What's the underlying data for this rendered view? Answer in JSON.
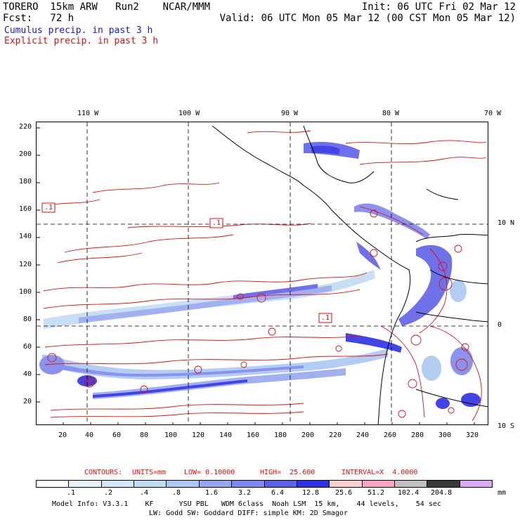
{
  "header": {
    "line1_left": "TORERO  15km ARW   Run2    NCAR/MMM",
    "line1_right": "Init: 06 UTC Fri 02 Mar 12",
    "line2_left": "Fcst:   72 h",
    "line2_right": "Valid: 06 UTC Mon 05 Mar 12 (00 CST Mon 05 Mar 12)",
    "cumulus_label": "Cumulus precip. in past 3 h",
    "explicit_label": "Explicit precip. in past 3 h"
  },
  "axes": {
    "top_longitudes": [
      "110 W",
      "100 W",
      "90 W",
      "80 W",
      "70 W"
    ],
    "right_latitudes": [
      "10 N",
      "0",
      "10 S"
    ],
    "left_ticks": [
      "220",
      "200",
      "180",
      "160",
      "140",
      "120",
      "100",
      "80",
      "60",
      "40",
      "20"
    ],
    "bottom_ticks": [
      "20",
      "40",
      "60",
      "80",
      "100",
      "120",
      "140",
      "160",
      "180",
      "200",
      "220",
      "240",
      "260",
      "280",
      "300",
      "320"
    ]
  },
  "map_labels": {
    "box_labels": [
      ".1",
      ".1",
      ".1"
    ]
  },
  "contours_info": {
    "label": "CONTOURS:",
    "units": "UNITS=mm",
    "low": "LOW= 0.10000",
    "high": "HIGH=  25.600",
    "interval": "INTERVAL=X  4.0000"
  },
  "scale": {
    "colors": [
      "#ffffff",
      "#e8f2fb",
      "#d2e6f8",
      "#c2dbf5",
      "#aac8f0",
      "#98a8ee",
      "#7f87ec",
      "#5f62e8",
      "#2e30e4",
      "#f7d0d0",
      "#f7a4c6",
      "#c0c0c0",
      "#3a3a3a",
      "#d8a8f4"
    ],
    "labels": [
      ".1",
      ".2",
      ".4",
      ".8",
      "1.6",
      "3.2",
      "6.4",
      "12.8",
      "25.6",
      "51.2",
      "102.4",
      "204.8"
    ],
    "unit": "mm"
  },
  "footer": {
    "line1": "Model Info: V3.3.1    KF      YSU PBL   WDM 6class  Noah LSM  15 km,    44 levels,    54 sec",
    "line2": "LW: Godd SW: Goddard DIFF: simple KM: 2D Smagor"
  },
  "legend_colors": {
    "cumulus": "#1a1acc",
    "explicit": "#dd1111"
  }
}
